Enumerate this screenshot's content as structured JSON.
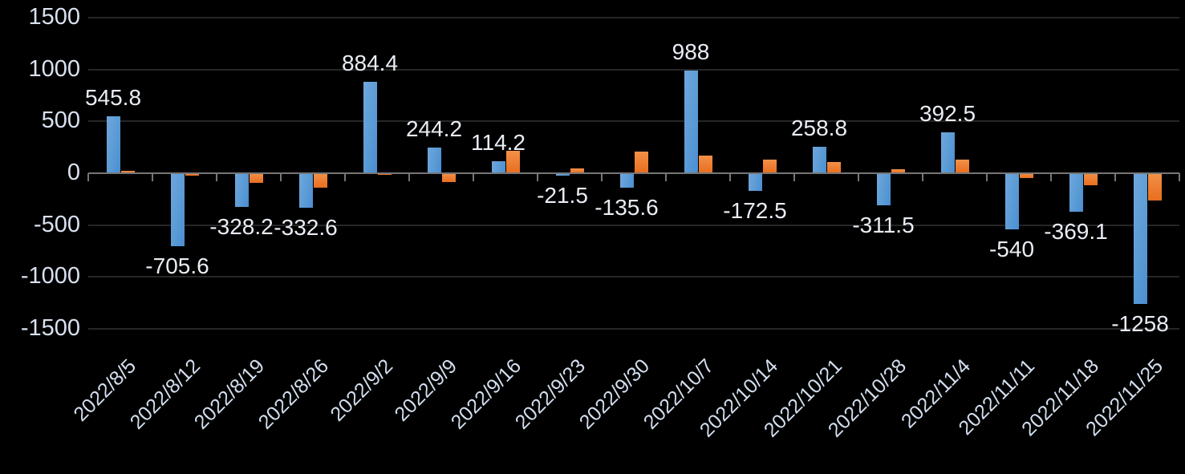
{
  "chart_data": {
    "type": "bar",
    "title": "",
    "legend": "none",
    "grid": true,
    "background_color": "#000000",
    "gridline_color": "#262626",
    "axis_color": "#767676",
    "text_color": "#D9E1F0",
    "data_label_color": "#E9EDF4",
    "categories": [
      "2022/8/5",
      "2022/8/12",
      "2022/8/19",
      "2022/8/26",
      "2022/9/2",
      "2022/9/9",
      "2022/9/16",
      "2022/9/23",
      "2022/9/30",
      "2022/10/7",
      "2022/10/14",
      "2022/10/21",
      "2022/10/28",
      "2022/11/4",
      "2022/11/11",
      "2022/11/18",
      "2022/11/25"
    ],
    "series": [
      {
        "name": "blue-series",
        "color": "#5B9BD5",
        "values": [
          545.8,
          -705.6,
          -328.2,
          -332.6,
          884.4,
          244.2,
          114.2,
          -21.5,
          -135.6,
          988,
          -172.5,
          258.8,
          -311.5,
          392.5,
          -540,
          -369.1,
          -1258
        ],
        "labels": [
          "545.8",
          "-705.6",
          "-328.2",
          "-332.6",
          "884.4",
          "244.2",
          "114.2",
          "-21.5",
          "-135.6",
          "988",
          "-172.5",
          "258.8",
          "-311.5",
          "392.5",
          "-540",
          "-369.1",
          "-1258"
        ],
        "labels_shown": true
      },
      {
        "name": "orange-series",
        "color": "#ED7D31",
        "values": [
          20,
          -20,
          -95,
          -140,
          -18,
          -85,
          215,
          45,
          205,
          170,
          130,
          105,
          40,
          135,
          -45,
          -115,
          -260
        ],
        "labels_shown": false
      }
    ],
    "y_axis": {
      "min": -1500,
      "max": 1500,
      "step": 500,
      "tick_labels": [
        "1500",
        "1000",
        "500",
        "0",
        "-500",
        "-1000",
        "-1500"
      ]
    },
    "x_axis": {
      "label_rotation_deg": -45
    }
  }
}
